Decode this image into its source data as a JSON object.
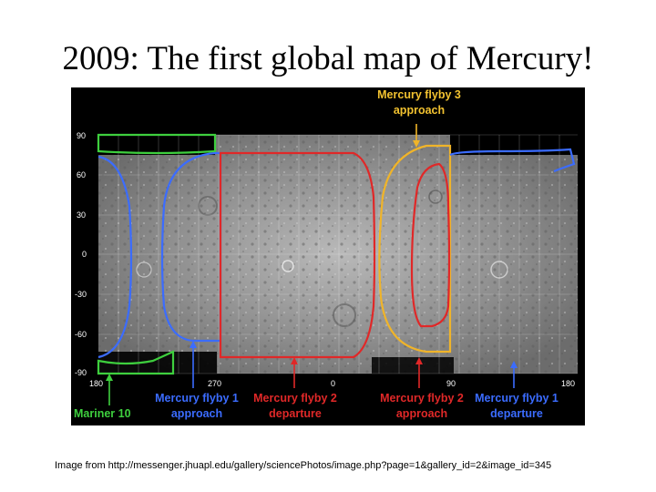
{
  "title": "2009: The first global map of Mercury!",
  "caption": "Image from http://messenger.jhuapl.edu/gallery/sciencePhotos/image.php?page=1&gallery_id=2&image_id=345",
  "map": {
    "lat_ticks": [
      "90",
      "60",
      "30",
      "0",
      "-30",
      "-60",
      "-90"
    ],
    "lon_ticks": [
      "180",
      "270",
      "0",
      "90",
      "180"
    ],
    "labels": {
      "flyby3": [
        "Mercury flyby 3",
        "approach"
      ],
      "mariner10": [
        "Mariner 10"
      ],
      "flyby1_approach": [
        "Mercury flyby 1",
        "approach"
      ],
      "flyby2_departure": [
        "Mercury flyby 2",
        "departure"
      ],
      "flyby2_approach": [
        "Mercury flyby 2",
        "approach"
      ],
      "flyby1_departure": [
        "Mercury flyby 1",
        "departure"
      ]
    },
    "colors": {
      "green": "#3ecf3e",
      "blue": "#3b6cff",
      "red": "#e02828",
      "yellow": "#f0b429",
      "flyby3_label": "#f2c230"
    }
  }
}
